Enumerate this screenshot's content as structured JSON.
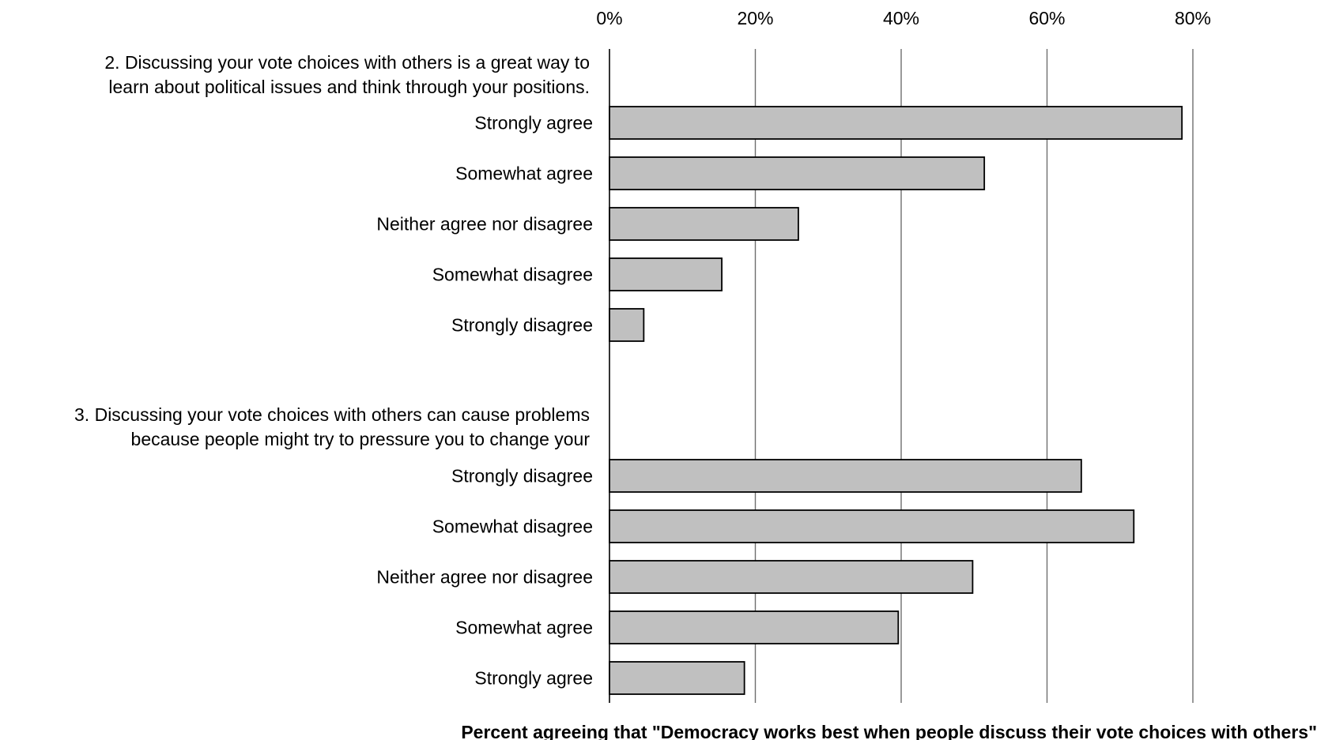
{
  "chart_data": {
    "type": "bar",
    "orientation": "horizontal",
    "xlabel": "Percent agreeing that \"Democracy works best when people discuss their vote choices with others\"",
    "xlim": [
      0,
      80
    ],
    "xticks": [
      "0%",
      "20%",
      "40%",
      "60%",
      "80%"
    ],
    "xtick_values": [
      0,
      20,
      40,
      60,
      80
    ],
    "x_axis_position": "top",
    "grid": true,
    "bar_color": "#c0c0c0",
    "bar_edge_color": "#000000",
    "groups": [
      {
        "title_lines": [
          "2. Discussing your vote choices with others is a great way to",
          "learn about political issues and think through your positions."
        ],
        "categories": [
          "Strongly agree",
          "Somewhat agree",
          "Neither agree nor disagree",
          "Somewhat disagree",
          "Strongly disagree"
        ],
        "values": [
          78.5,
          51.4,
          25.9,
          15.4,
          4.7
        ]
      },
      {
        "title_lines": [
          "3. Discussing your vote choices with others can cause problems",
          "because people might try to pressure you to change your"
        ],
        "categories": [
          "Strongly disagree",
          "Somewhat disagree",
          "Neither agree nor disagree",
          "Somewhat agree",
          "Strongly agree"
        ],
        "values": [
          64.7,
          71.9,
          49.8,
          39.6,
          18.5
        ]
      }
    ]
  }
}
